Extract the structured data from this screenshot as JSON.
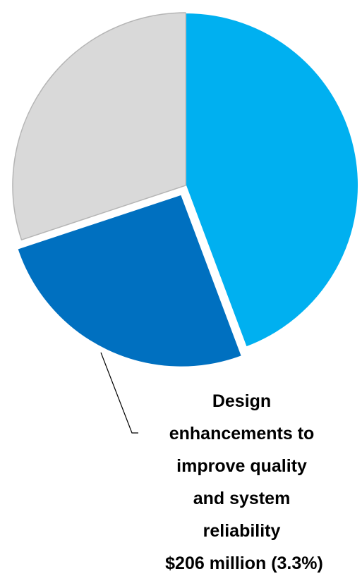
{
  "chart_data": {
    "type": "pie",
    "title": "",
    "slices": [
      {
        "share": 0.443,
        "color": "#00b0f0",
        "label": []
      },
      {
        "share": 0.256,
        "color": "#0070c0",
        "exploded": true,
        "label": [
          "Design",
          "enhancements to",
          "improve quality",
          "and system",
          "reliability",
          "$206 million (3.3%)"
        ]
      },
      {
        "share": 0.301,
        "color": "#d9d9d9",
        "label": []
      }
    ],
    "legend": "none",
    "leader_line": true
  }
}
